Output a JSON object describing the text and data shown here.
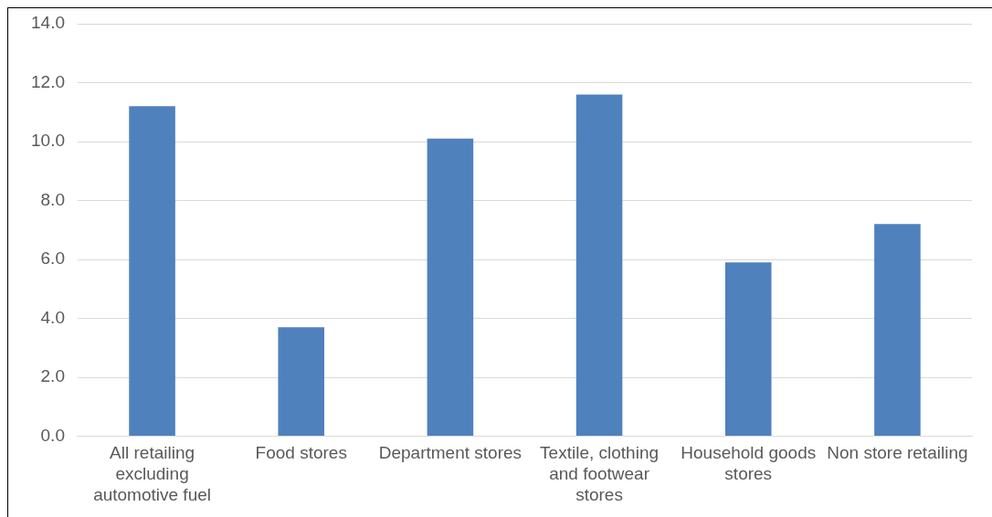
{
  "chart_data": {
    "type": "bar",
    "categories": [
      "All retailing excluding automotive fuel",
      "Food stores",
      "Department stores",
      "Textile, clothing and footwear stores",
      "Household goods stores",
      "Non store retailing"
    ],
    "values": [
      11.2,
      3.7,
      10.1,
      11.6,
      5.9,
      7.2
    ],
    "color": "#4f81bd",
    "ylim": [
      0,
      14
    ],
    "yticks": [
      {
        "value": 0,
        "label": "0.0"
      },
      {
        "value": 2,
        "label": "2.0"
      },
      {
        "value": 4,
        "label": "4.0"
      },
      {
        "value": 6,
        "label": "6.0"
      },
      {
        "value": 8,
        "label": "8.0"
      },
      {
        "value": 10,
        "label": "10.0"
      },
      {
        "value": 12,
        "label": "12.0"
      },
      {
        "value": 14,
        "label": "14.0"
      }
    ],
    "grid": "y"
  }
}
